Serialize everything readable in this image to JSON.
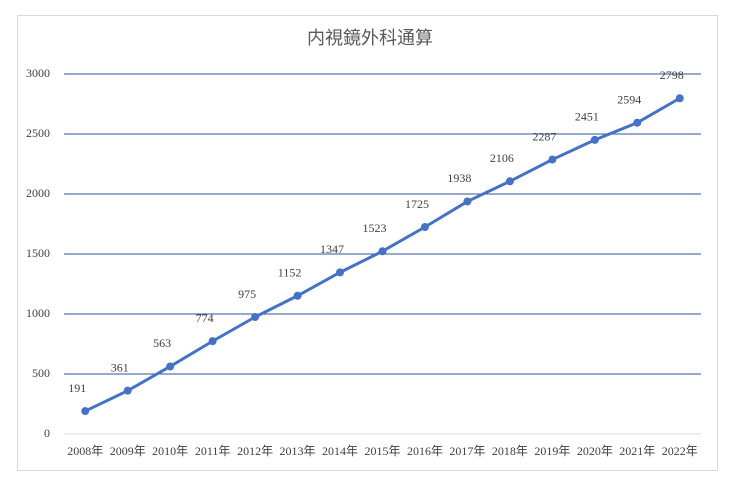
{
  "chart_data": {
    "type": "line",
    "title": "内視鏡外科通算",
    "categories": [
      "2008年",
      "2009年",
      "2010年",
      "2011年",
      "2012年",
      "2013年",
      "2014年",
      "2015年",
      "2016年",
      "2017年",
      "2018年",
      "2019年",
      "2020年",
      "2021年",
      "2022年"
    ],
    "values": [
      191,
      361,
      563,
      774,
      975,
      1152,
      1347,
      1523,
      1725,
      1938,
      2106,
      2287,
      2451,
      2594,
      2798
    ],
    "color": "#4472c4",
    "ylim": [
      0,
      3000
    ],
    "yticks": [
      0,
      500,
      1000,
      1500,
      2000,
      2500,
      3000
    ],
    "grid": true
  }
}
